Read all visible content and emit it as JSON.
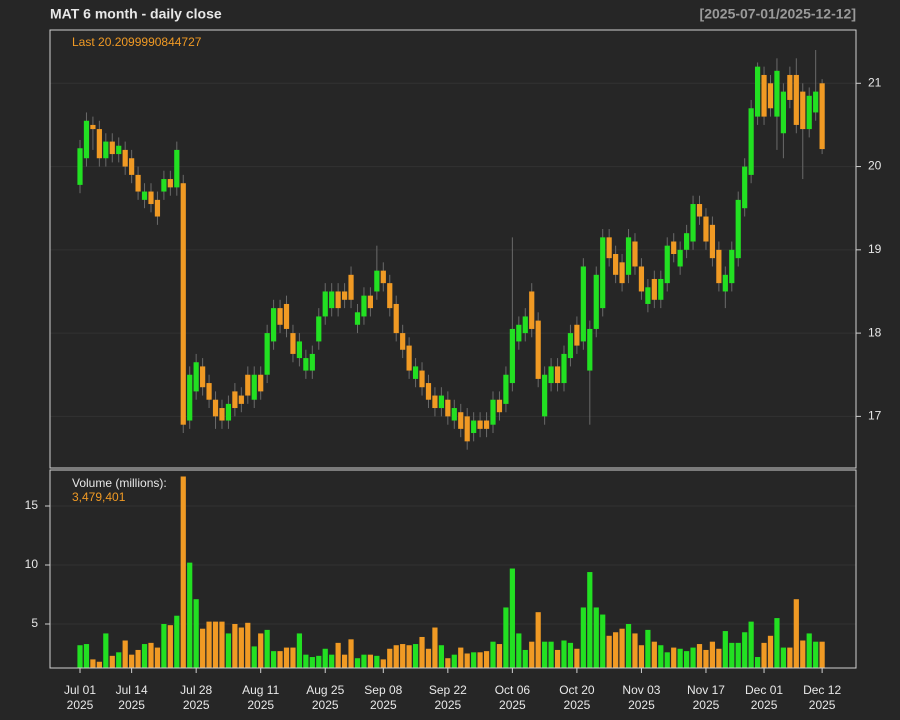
{
  "chart_data": [
    {
      "type": "candlestick",
      "title": "MAT  6 month - daily close",
      "subtitle": "[2025-07-01/2025-12-12]",
      "annotation": "Last 20.2099990844727",
      "up_color": "#22e022",
      "down_color": "#f09a24",
      "grid": true,
      "ylim": [
        16.38,
        21.64
      ],
      "yticks": [
        17,
        18,
        19,
        20,
        21
      ],
      "xlim": [
        -4.65,
        120.25
      ],
      "xticks": [
        {
          "value": 0,
          "label": "Jul 01",
          "year": "2025"
        },
        {
          "value": 8,
          "label": "Jul 14",
          "year": "2025"
        },
        {
          "value": 18,
          "label": "Jul 28",
          "year": "2025"
        },
        {
          "value": 28,
          "label": "Aug 11",
          "year": "2025"
        },
        {
          "value": 38,
          "label": "Aug 25",
          "year": "2025"
        },
        {
          "value": 47,
          "label": "Sep 08",
          "year": "2025"
        },
        {
          "value": 57,
          "label": "Sep 22",
          "year": "2025"
        },
        {
          "value": 67,
          "label": "Oct 06",
          "year": "2025"
        },
        {
          "value": 77,
          "label": "Oct 20",
          "year": "2025"
        },
        {
          "value": 87,
          "label": "Nov 03",
          "year": "2025"
        },
        {
          "value": 97,
          "label": "Nov 17",
          "year": "2025"
        },
        {
          "value": 106,
          "label": "Dec 01",
          "year": "2025"
        },
        {
          "value": 115,
          "label": "Dec 12",
          "year": "2025"
        }
      ],
      "open": [
        19.78,
        20.1,
        20.5,
        20.45,
        20.1,
        20.3,
        20.15,
        20.2,
        20.1,
        19.9,
        19.6,
        19.7,
        19.6,
        19.7,
        19.85,
        19.75,
        19.8,
        16.95,
        17.3,
        17.6,
        17.4,
        17.2,
        17.1,
        16.95,
        17.3,
        17.25,
        17.5,
        17.2,
        17.5,
        17.5,
        17.9,
        18.3,
        18.35,
        18.0,
        17.7,
        17.55,
        17.55,
        17.9,
        18.2,
        18.3,
        18.5,
        18.5,
        18.7,
        18.1,
        18.2,
        18.45,
        18.5,
        18.75,
        18.6,
        18.35,
        18.0,
        17.85,
        17.45,
        17.55,
        17.4,
        17.25,
        17.1,
        17.2,
        16.95,
        17.05,
        17.0,
        16.8,
        16.95,
        16.95,
        16.9,
        17.2,
        17.15,
        17.4,
        17.9,
        18.0,
        18.5,
        18.15,
        17.0,
        17.4,
        17.6,
        17.4,
        17.7,
        18.1,
        17.9,
        17.55,
        18.05,
        18.3,
        19.15,
        18.95,
        18.85,
        18.7,
        19.1,
        18.8,
        18.35,
        18.65,
        18.4,
        18.6,
        19.1,
        18.8,
        19.0,
        19.1,
        19.55,
        19.4,
        19.3,
        19.0,
        18.5,
        18.6,
        18.9,
        19.5,
        19.9,
        20.6,
        21.1,
        21.0,
        20.6,
        20.4,
        21.1,
        21.1,
        20.9,
        20.45,
        20.65,
        21.0
      ],
      "high": [
        20.32,
        20.65,
        20.6,
        20.55,
        20.4,
        20.4,
        20.35,
        20.3,
        20.2,
        20.0,
        19.8,
        19.8,
        19.7,
        19.95,
        19.95,
        20.3,
        19.9,
        17.6,
        17.75,
        17.7,
        17.5,
        17.3,
        17.2,
        17.25,
        17.4,
        17.35,
        17.6,
        17.6,
        17.6,
        18.1,
        18.4,
        18.4,
        18.45,
        18.1,
        18.0,
        17.8,
        17.85,
        18.3,
        18.6,
        18.6,
        18.6,
        18.6,
        18.8,
        18.35,
        18.55,
        18.55,
        19.05,
        18.85,
        18.7,
        18.45,
        18.1,
        17.95,
        17.7,
        17.65,
        17.5,
        17.35,
        17.35,
        17.3,
        17.2,
        17.15,
        17.1,
        17.05,
        17.05,
        17.05,
        17.3,
        17.3,
        17.6,
        19.15,
        18.2,
        18.3,
        18.6,
        18.25,
        17.6,
        17.7,
        17.7,
        17.85,
        18.1,
        18.2,
        18.9,
        18.15,
        18.8,
        19.25,
        19.25,
        19.05,
        18.95,
        19.25,
        19.2,
        18.9,
        18.65,
        18.75,
        18.75,
        19.15,
        19.2,
        19.1,
        19.3,
        19.65,
        19.65,
        19.5,
        19.4,
        19.1,
        18.8,
        19.1,
        19.7,
        20.1,
        20.8,
        21.25,
        21.2,
        21.1,
        21.3,
        21.0,
        21.2,
        21.3,
        21.0,
        20.95,
        21.4,
        21.05
      ],
      "low": [
        19.68,
        20.0,
        20.2,
        20.0,
        20.0,
        20.05,
        20.05,
        19.9,
        19.8,
        19.6,
        19.5,
        19.45,
        19.3,
        19.6,
        19.65,
        19.65,
        16.8,
        16.85,
        17.2,
        17.25,
        17.1,
        16.85,
        16.85,
        16.85,
        17.0,
        17.05,
        17.15,
        17.1,
        17.2,
        17.4,
        17.8,
        18.0,
        17.95,
        17.65,
        17.6,
        17.45,
        17.45,
        17.8,
        18.1,
        18.2,
        18.2,
        18.3,
        18.3,
        18.0,
        18.1,
        18.2,
        18.4,
        18.5,
        18.2,
        17.9,
        17.7,
        17.45,
        17.35,
        17.25,
        17.1,
        17.0,
        17.0,
        16.9,
        16.85,
        16.75,
        16.6,
        16.7,
        16.75,
        16.75,
        16.8,
        16.95,
        17.05,
        17.3,
        17.8,
        17.9,
        17.95,
        17.35,
        16.9,
        17.3,
        17.3,
        17.3,
        17.6,
        17.75,
        17.8,
        16.9,
        17.95,
        18.2,
        18.8,
        18.6,
        18.5,
        18.6,
        18.7,
        18.4,
        18.25,
        18.3,
        18.3,
        18.5,
        18.85,
        18.7,
        18.9,
        19.0,
        19.3,
        19.0,
        18.8,
        18.5,
        18.3,
        18.5,
        18.8,
        19.4,
        19.8,
        20.5,
        20.5,
        20.6,
        20.2,
        20.1,
        20.7,
        20.4,
        19.85,
        20.35,
        20.55,
        20.15
      ],
      "close": [
        20.22,
        20.55,
        20.45,
        20.1,
        20.3,
        20.15,
        20.25,
        20.0,
        19.9,
        19.7,
        19.7,
        19.55,
        19.4,
        19.85,
        19.75,
        20.2,
        16.9,
        17.5,
        17.65,
        17.35,
        17.2,
        17.0,
        16.95,
        17.15,
        17.1,
        17.15,
        17.25,
        17.5,
        17.3,
        18.0,
        18.3,
        18.1,
        18.05,
        17.75,
        17.9,
        17.7,
        17.75,
        18.2,
        18.5,
        18.5,
        18.3,
        18.4,
        18.4,
        18.25,
        18.45,
        18.3,
        18.75,
        18.6,
        18.3,
        18.0,
        17.8,
        17.55,
        17.6,
        17.35,
        17.2,
        17.1,
        17.25,
        17.0,
        17.1,
        16.85,
        16.7,
        16.95,
        16.85,
        16.85,
        17.2,
        17.05,
        17.5,
        18.05,
        18.1,
        18.2,
        18.05,
        17.45,
        17.5,
        17.6,
        17.4,
        17.75,
        18.0,
        17.85,
        18.8,
        18.05,
        18.7,
        19.15,
        18.9,
        18.7,
        18.6,
        19.15,
        18.8,
        18.5,
        18.55,
        18.4,
        18.65,
        19.05,
        18.95,
        19.0,
        19.2,
        19.55,
        19.4,
        19.1,
        18.9,
        18.6,
        18.7,
        19.0,
        19.6,
        20.0,
        20.7,
        21.2,
        20.6,
        20.7,
        21.15,
        20.9,
        20.8,
        20.5,
        20.45,
        20.85,
        20.9,
        20.21
      ]
    },
    {
      "type": "bar",
      "title": "Volume (millions):",
      "annotation": "3,479,401",
      "ylim": [
        1.27,
        18.05
      ],
      "yticks": [
        5,
        10,
        15
      ],
      "grid": true,
      "values": [
        3.2,
        3.3,
        2.0,
        1.8,
        4.2,
        2.3,
        2.6,
        3.6,
        2.4,
        2.8,
        3.3,
        3.4,
        3.0,
        5.0,
        4.9,
        5.7,
        17.5,
        10.2,
        7.1,
        4.6,
        5.2,
        5.2,
        5.2,
        4.2,
        5.0,
        4.7,
        5.1,
        3.1,
        4.2,
        4.5,
        2.7,
        2.7,
        3.0,
        3.0,
        4.2,
        2.4,
        2.2,
        2.3,
        2.9,
        2.4,
        3.4,
        2.4,
        3.7,
        2.1,
        2.4,
        2.4,
        2.3,
        2.0,
        2.9,
        3.2,
        3.3,
        3.2,
        3.3,
        3.9,
        2.9,
        4.7,
        3.2,
        2.1,
        2.4,
        3.0,
        2.5,
        2.6,
        2.6,
        2.7,
        3.5,
        3.3,
        6.4,
        9.7,
        4.2,
        2.8,
        3.5,
        6.0,
        3.5,
        3.5,
        2.8,
        3.6,
        3.4,
        2.9,
        6.4,
        9.4,
        6.4,
        5.8,
        4.0,
        4.3,
        4.6,
        5.0,
        4.2,
        3.2,
        4.5,
        3.5,
        3.2,
        2.6,
        3.0,
        2.9,
        2.7,
        3.0,
        3.3,
        2.8,
        3.5,
        2.9,
        4.4,
        3.4,
        3.4,
        4.3,
        5.2,
        2.2,
        3.4,
        4.0,
        5.5,
        3.0,
        3.0,
        7.1,
        3.6,
        4.2,
        3.5,
        3.5
      ]
    }
  ]
}
